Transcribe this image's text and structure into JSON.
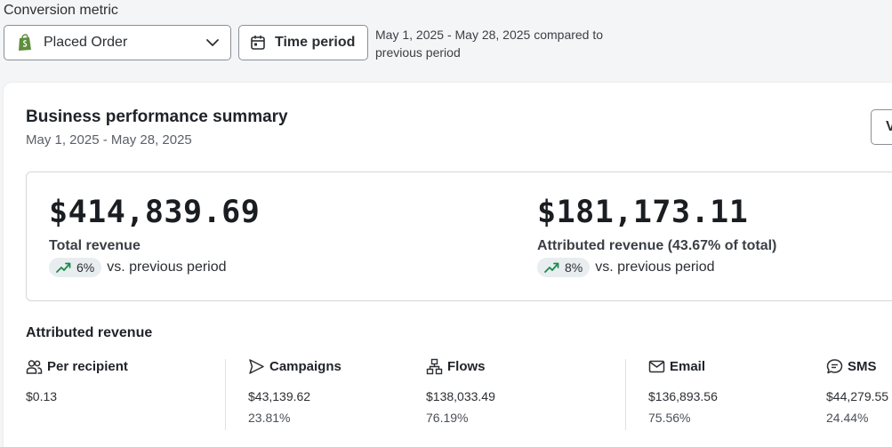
{
  "filters": {
    "metric_label": "Conversion metric",
    "metric_value": "Placed Order",
    "time_button": "Time period",
    "range_note": "May 1, 2025 - May 28, 2025 compared to previous period"
  },
  "summary": {
    "title": "Business performance summary",
    "date_range": "May 1, 2025 - May 28, 2025",
    "view_button": "V",
    "total": {
      "amount": "$414,839.69",
      "label": "Total revenue",
      "change": "6%",
      "vs": "vs. previous period"
    },
    "attributed": {
      "amount": "$181,173.11",
      "label": "Attributed revenue (43.67% of total)",
      "change": "8%",
      "vs": "vs. previous period"
    }
  },
  "attributed_revenue": {
    "title": "Attributed revenue",
    "per_recipient": {
      "label": "Per recipient",
      "value": "$0.13"
    },
    "campaigns": {
      "label": "Campaigns",
      "value": "$43,139.62",
      "share": "23.81%"
    },
    "flows": {
      "label": "Flows",
      "value": "$138,033.49",
      "share": "76.19%"
    },
    "email": {
      "label": "Email",
      "value": "$136,893.56",
      "share": "75.56%"
    },
    "sms": {
      "label": "SMS",
      "value": "$44,279.55",
      "share": "24.44%"
    }
  },
  "colors": {
    "trend_up": "#1f8a4c",
    "brand_shop": "#5e8e3e"
  }
}
